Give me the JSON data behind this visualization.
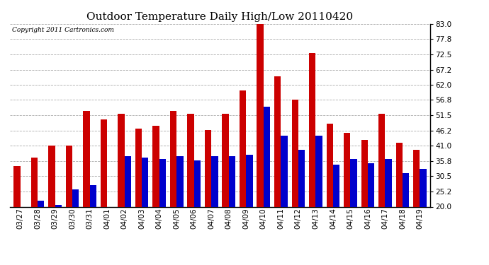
{
  "title": "Outdoor Temperature Daily High/Low 20110420",
  "copyright": "Copyright 2011 Cartronics.com",
  "dates": [
    "03/27",
    "03/28",
    "03/29",
    "03/30",
    "03/31",
    "04/01",
    "04/02",
    "04/03",
    "04/04",
    "04/05",
    "04/06",
    "04/07",
    "04/08",
    "04/09",
    "04/10",
    "04/11",
    "04/12",
    "04/13",
    "04/14",
    "04/15",
    "04/16",
    "04/17",
    "04/18",
    "04/19"
  ],
  "highs": [
    34.0,
    37.0,
    41.0,
    41.0,
    53.0,
    50.0,
    52.0,
    47.0,
    48.0,
    53.0,
    52.0,
    46.5,
    52.0,
    60.0,
    83.0,
    65.0,
    57.0,
    73.0,
    48.5,
    45.5,
    43.0,
    52.0,
    42.0,
    39.5
  ],
  "lows": [
    20.0,
    22.0,
    20.5,
    26.0,
    27.5,
    20.0,
    37.5,
    37.0,
    36.5,
    37.5,
    36.0,
    37.5,
    37.5,
    38.0,
    54.5,
    44.5,
    39.5,
    44.5,
    34.5,
    36.5,
    35.0,
    36.5,
    31.5,
    33.0
  ],
  "high_color": "#cc0000",
  "low_color": "#0000cc",
  "background_color": "#ffffff",
  "grid_color": "#aaaaaa",
  "ymin": 20.0,
  "ymax": 83.0,
  "yticks": [
    20.0,
    25.2,
    30.5,
    35.8,
    41.0,
    46.2,
    51.5,
    56.8,
    62.0,
    67.2,
    72.5,
    77.8,
    83.0
  ],
  "title_fontsize": 11,
  "tick_fontsize": 7.5,
  "copyright_fontsize": 6.5,
  "bar_width": 0.38
}
